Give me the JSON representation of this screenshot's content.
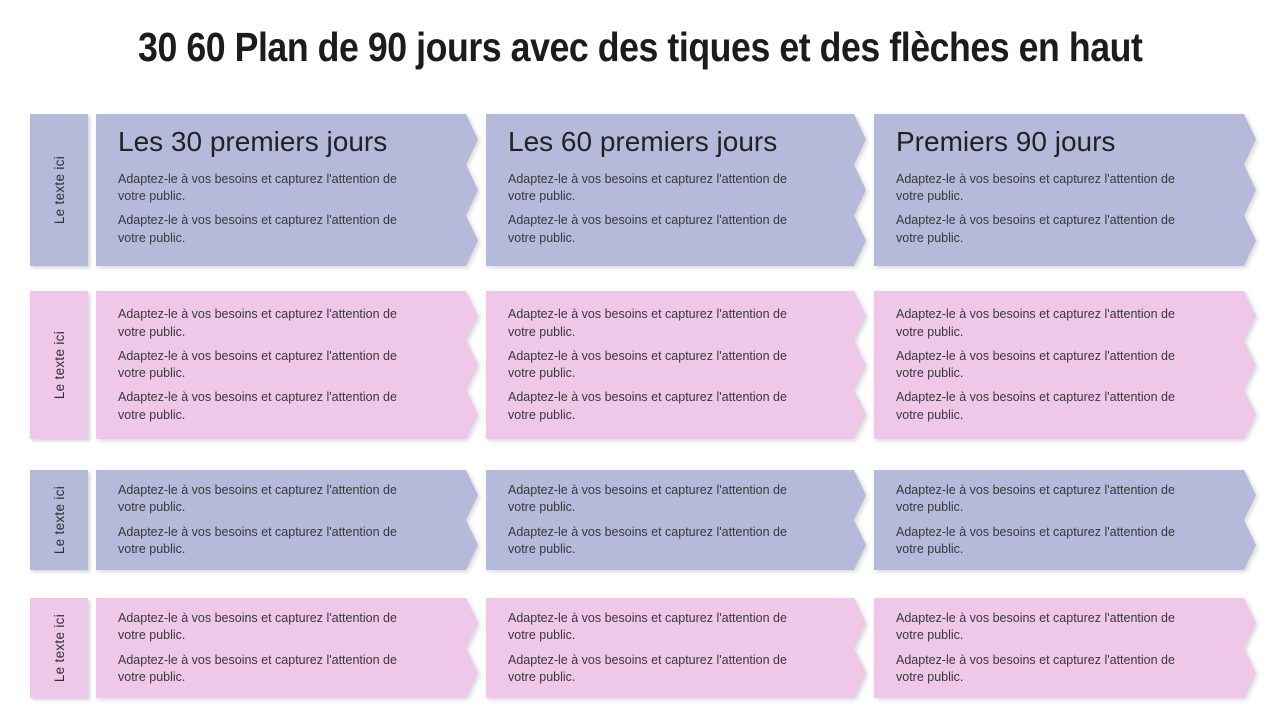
{
  "title": "30 60 Plan de 90 jours avec des tiques et des flèches en haut",
  "colors": {
    "lavender": "#b5badb",
    "pink": "#efc8e9",
    "background": "#ffffff",
    "title_text": "#1c1c1c",
    "body_text": "#383838"
  },
  "rows": [
    {
      "side_label": "Le texte ici",
      "theme": "lavender",
      "columns": [
        {
          "header": "Les 30 premiers jours",
          "paragraphs": [
            "Adaptez-le à vos besoins et capturez l'attention de\nvotre public.",
            "Adaptez-le à vos besoins et capturez l'attention de\nvotre public."
          ]
        },
        {
          "header": "Les 60 premiers jours",
          "paragraphs": [
            "Adaptez-le à vos besoins et capturez l'attention de\nvotre public.",
            "Adaptez-le à vos besoins et capturez l'attention de\nvotre public."
          ]
        },
        {
          "header": "Premiers 90 jours",
          "paragraphs": [
            "Adaptez-le à vos besoins et capturez l'attention de\nvotre public.",
            "Adaptez-le à vos besoins et capturez l'attention de\nvotre public."
          ]
        }
      ]
    },
    {
      "side_label": "Le texte ici",
      "theme": "pink",
      "columns": [
        {
          "paragraphs": [
            "Adaptez-le à vos besoins et capturez l'attention de\nvotre public.",
            "Adaptez-le à vos besoins et capturez l'attention de\nvotre public.",
            "Adaptez-le à vos besoins et capturez l'attention de\nvotre public."
          ]
        },
        {
          "paragraphs": [
            "Adaptez-le à vos besoins et capturez l'attention de\nvotre public.",
            "Adaptez-le à vos besoins et capturez l'attention de\nvotre public.",
            "Adaptez-le à vos besoins et capturez l'attention de\nvotre public."
          ]
        },
        {
          "paragraphs": [
            "Adaptez-le à vos besoins et capturez l'attention de\nvotre public.",
            "Adaptez-le à vos besoins et capturez l'attention de\nvotre public.",
            "Adaptez-le à vos besoins et capturez l'attention de\nvotre public."
          ]
        }
      ]
    },
    {
      "side_label": "Le texte ici",
      "theme": "lavender",
      "columns": [
        {
          "paragraphs": [
            "Adaptez-le à vos besoins et capturez l'attention de\nvotre public.",
            "Adaptez-le à vos besoins et capturez l'attention de\nvotre public."
          ]
        },
        {
          "paragraphs": [
            "Adaptez-le à vos besoins et capturez l'attention de\nvotre public.",
            "Adaptez-le à vos besoins et capturez l'attention de\nvotre public."
          ]
        },
        {
          "paragraphs": [
            "Adaptez-le à vos besoins et capturez l'attention de\nvotre public.",
            "Adaptez-le à vos besoins et capturez l'attention de\nvotre public."
          ]
        }
      ]
    },
    {
      "side_label": "Le texte ici",
      "theme": "pink",
      "columns": [
        {
          "paragraphs": [
            "Adaptez-le à vos besoins et capturez l'attention de\nvotre public.",
            "Adaptez-le à vos besoins et capturez l'attention de\nvotre public."
          ]
        },
        {
          "paragraphs": [
            "Adaptez-le à vos besoins et capturez l'attention de\nvotre public.",
            "Adaptez-le à vos besoins et capturez l'attention de\nvotre public."
          ]
        },
        {
          "paragraphs": [
            "Adaptez-le à vos besoins et capturez l'attention de\nvotre public.",
            "Adaptez-le à vos besoins et capturez l'attention de\nvotre public."
          ]
        }
      ]
    }
  ]
}
